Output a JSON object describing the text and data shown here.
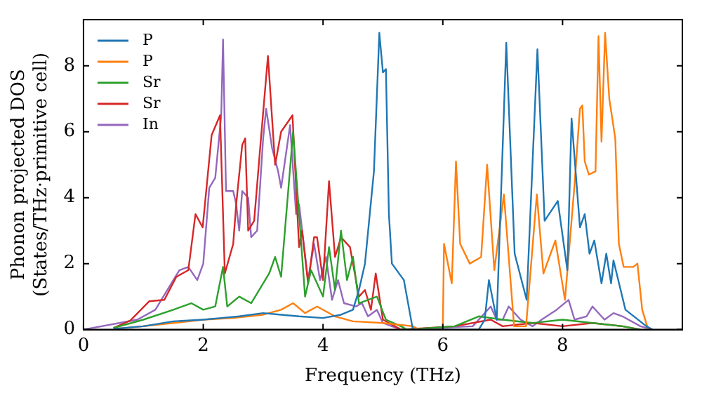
{
  "chart_data": {
    "type": "line",
    "xlabel": "Frequency (THz)",
    "ylabel": "Phonon projected DOS\n(States/THz·primitive cell)",
    "xlim": [
      0,
      10
    ],
    "ylim": [
      0,
      9.4
    ],
    "xticks": [
      0,
      2,
      4,
      6,
      8
    ],
    "yticks": [
      0,
      2,
      4,
      6,
      8
    ],
    "grid": false,
    "legend": "top left",
    "marker": "none",
    "line_style": "solid",
    "series": [
      {
        "name": "P",
        "color": "#1f77b4",
        "x": [
          0.5,
          1,
          1.5,
          2,
          2.3,
          2.6,
          3,
          3.3,
          3.6,
          4,
          4.3,
          4.5,
          4.6,
          4.7,
          4.85,
          4.94,
          5.0,
          5.05,
          5.1,
          5.15,
          5.35,
          5.5,
          6.6,
          6.7,
          6.77,
          6.9,
          7.06,
          7.2,
          7.4,
          7.58,
          7.7,
          7.92,
          8.08,
          8.15,
          8.29,
          8.37,
          8.45,
          8.53,
          8.65,
          8.73,
          8.81,
          8.85,
          9.05,
          9.4,
          9.5
        ],
        "values": [
          0.02,
          0.1,
          0.25,
          0.3,
          0.35,
          0.4,
          0.5,
          0.45,
          0.4,
          0.35,
          0.45,
          0.6,
          1.2,
          2,
          4.8,
          9,
          7.8,
          7.9,
          3.5,
          2,
          1.5,
          0,
          0,
          0.3,
          1.5,
          0.3,
          8.7,
          2.3,
          0.9,
          8.5,
          3.3,
          3.9,
          1.8,
          6.4,
          3.1,
          3.5,
          2.3,
          2.7,
          1.4,
          2.3,
          1.4,
          2.1,
          0.6,
          0.1,
          0
        ]
      },
      {
        "name": "P",
        "color": "#ff7f0e",
        "x": [
          0.5,
          1,
          1.5,
          2,
          2.5,
          3,
          3.3,
          3.5,
          3.7,
          3.9,
          4.2,
          4.5,
          5,
          5.5,
          5.6,
          6.0,
          6.02,
          6.15,
          6.22,
          6.29,
          6.45,
          6.64,
          6.74,
          6.86,
          7.02,
          7.19,
          7.39,
          7.57,
          7.68,
          7.88,
          8.04,
          8.2,
          8.29,
          8.33,
          8.37,
          8.44,
          8.55,
          8.6,
          8.65,
          8.71,
          8.78,
          8.88,
          8.94,
          9.02,
          9.18,
          9.25,
          9.33,
          9.43
        ],
        "values": [
          0.02,
          0.1,
          0.2,
          0.3,
          0.35,
          0.45,
          0.6,
          0.8,
          0.5,
          0.7,
          0.4,
          0.25,
          0.2,
          0.1,
          0,
          0,
          2.6,
          1.4,
          5.1,
          2.6,
          2,
          2.2,
          5,
          1.8,
          4.1,
          0.1,
          0.1,
          4.1,
          1.7,
          2.7,
          0.9,
          4.4,
          6.7,
          6.8,
          5.1,
          4.7,
          4.8,
          8.9,
          5.7,
          9,
          7,
          5.8,
          2.6,
          1.9,
          1.9,
          2,
          0.6,
          0
        ]
      },
      {
        "name": "Sr",
        "color": "#2ca02c",
        "x": [
          0.5,
          1,
          1.5,
          1.8,
          2.0,
          2.2,
          2.33,
          2.4,
          2.6,
          2.8,
          3.1,
          3.2,
          3.3,
          3.5,
          3.7,
          3.8,
          4.0,
          4.1,
          4.2,
          4.3,
          4.4,
          4.5,
          4.6,
          4.9,
          5.05,
          5.3,
          5.4,
          6.2,
          6.6,
          7,
          7.5,
          8,
          8.5,
          9,
          9.3
        ],
        "values": [
          0.05,
          0.3,
          0.6,
          0.8,
          0.6,
          0.7,
          1.9,
          0.7,
          1,
          0.8,
          1.7,
          2.2,
          1.6,
          6,
          1,
          1.8,
          1,
          2.5,
          1.2,
          3,
          1.5,
          2.2,
          0.8,
          1,
          0.3,
          0.1,
          0,
          0.1,
          0.4,
          0.3,
          0.2,
          0.3,
          0.2,
          0.1,
          0
        ]
      },
      {
        "name": "Sr",
        "color": "#d62728",
        "x": [
          0.5,
          0.78,
          1.1,
          1.35,
          1.55,
          1.75,
          1.87,
          1.99,
          2.14,
          2.28,
          2.36,
          2.5,
          2.55,
          2.65,
          2.7,
          2.75,
          2.85,
          2.95,
          3.08,
          3.2,
          3.3,
          3.49,
          3.6,
          3.65,
          3.75,
          3.85,
          3.9,
          4.0,
          4.1,
          4.2,
          4.3,
          4.45,
          4.55,
          4.6,
          4.7,
          4.8,
          4.88,
          5.0,
          5.2,
          5.3,
          6.2,
          6.8,
          7,
          7.5,
          8,
          8.5,
          9,
          9.3
        ],
        "values": [
          0.05,
          0.27,
          0.86,
          0.9,
          1.6,
          1.8,
          3.5,
          3.1,
          5.9,
          6.5,
          1.7,
          2.6,
          3.8,
          5.6,
          5.8,
          3,
          3.3,
          5.5,
          8.3,
          5,
          6,
          6.5,
          2.5,
          3,
          1.4,
          2.8,
          2.8,
          1.5,
          4.5,
          2.2,
          2.8,
          2.5,
          1.5,
          1,
          1.2,
          0.6,
          1.7,
          0.3,
          0.1,
          0,
          0.1,
          0.3,
          0.1,
          0.2,
          0.1,
          0.2,
          0.1,
          0
        ]
      },
      {
        "name": "In",
        "color": "#9467bd",
        "x": [
          0,
          0.9,
          1.2,
          1.6,
          1.75,
          1.9,
          2.0,
          2.1,
          2.2,
          2.3,
          2.33,
          2.38,
          2.5,
          2.55,
          2.6,
          2.65,
          2.75,
          2.8,
          2.9,
          3.0,
          3.05,
          3.15,
          3.25,
          3.3,
          3.45,
          3.55,
          3.6,
          3.75,
          3.85,
          3.95,
          4.05,
          4.15,
          4.25,
          4.35,
          4.55,
          4.65,
          4.75,
          4.9,
          5.0,
          5.3,
          6.5,
          6.8,
          6.9,
          7.0,
          7.1,
          7.3,
          7.5,
          7.65,
          7.9,
          8.1,
          8.2,
          8.4,
          8.5,
          8.7,
          8.85,
          9.0,
          9.3,
          9.5
        ],
        "values": [
          0,
          0.3,
          0.6,
          1.8,
          1.9,
          1.5,
          2,
          4.3,
          4.6,
          6.5,
          8.8,
          4.2,
          4.2,
          3.8,
          3,
          4.2,
          4,
          2.8,
          3,
          5.8,
          6.7,
          5.5,
          4.8,
          4.3,
          6.2,
          3.5,
          3.8,
          1.5,
          2.6,
          1.5,
          2.2,
          0.9,
          1.5,
          0.8,
          0.7,
          0.8,
          0.4,
          0.6,
          0.2,
          0,
          0.1,
          0.7,
          0.3,
          0.3,
          0.7,
          0.3,
          0.1,
          0.3,
          0.6,
          0.9,
          0.3,
          0.4,
          0.7,
          0.3,
          0.5,
          0.4,
          0.1,
          0
        ]
      }
    ]
  }
}
